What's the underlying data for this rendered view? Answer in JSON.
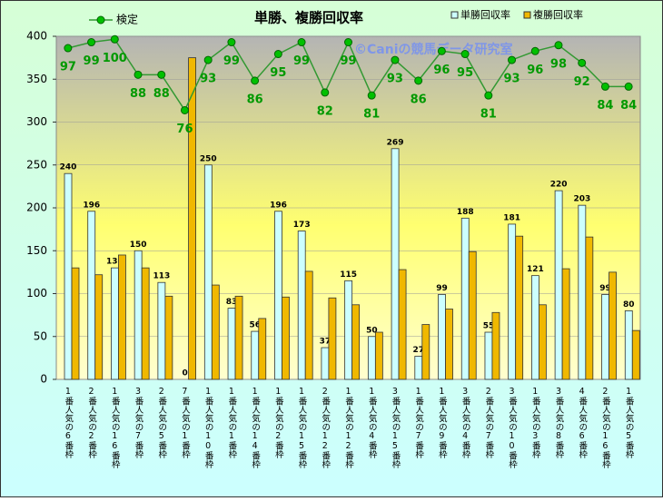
{
  "chart_data": {
    "type": "bar",
    "title": "単勝、複勝回収率",
    "annotation": "©Caniの競馬データ研究室",
    "categories": [
      "1番人気の6番枠",
      "2番人気の2番枠",
      "1番人気の16番枠",
      "3番人気の7番枠",
      "2番人気の5番枠",
      "7番人気の1番枠",
      "1番人気の10番枠",
      "1番人気の1番枠",
      "1番人気の14番枠",
      "1番人気の2番枠",
      "1番人気の15番枠",
      "2番人気の12番枠",
      "1番人気の12番枠",
      "1番人気の4番枠",
      "3番人気の15番枠",
      "1番人気の7番枠",
      "1番人気の9番枠",
      "3番人気の4番枠",
      "2番人気の7番枠",
      "3番人気の10番枠",
      "1番人気の3番枠",
      "3番人気の8番枠",
      "4番人気の6番枠",
      "2番人気の16番枠",
      "1番人気の5番枠"
    ],
    "series": [
      {
        "name": "検定",
        "type": "line",
        "axis": "y2",
        "color": "#00c000",
        "values": [
          97,
          99,
          100,
          88,
          88,
          76,
          93,
          99,
          86,
          95,
          99,
          82,
          99,
          81,
          93,
          86,
          96,
          95,
          81,
          93,
          96,
          98,
          92,
          84,
          84
        ]
      },
      {
        "name": "単勝回収率",
        "color": "#ccffff",
        "values": [
          240,
          196,
          130,
          150,
          113,
          0,
          250,
          83,
          56,
          196,
          173,
          37,
          115,
          50,
          269,
          27,
          99,
          188,
          55,
          181,
          121,
          220,
          203,
          99,
          80
        ]
      },
      {
        "name": "複勝回収率",
        "color": "#f0b800",
        "values": [
          130,
          122,
          145,
          130,
          97,
          375,
          110,
          97,
          71,
          96,
          126,
          95,
          87,
          55,
          128,
          64,
          82,
          149,
          78,
          167,
          87,
          129,
          166,
          125,
          57
        ]
      }
    ],
    "ylim": [
      0,
      400
    ],
    "yticks": [
      0,
      50,
      100,
      150,
      200,
      250,
      300,
      350,
      400
    ],
    "y2lim": [
      -15,
      101
    ],
    "grid": true
  }
}
